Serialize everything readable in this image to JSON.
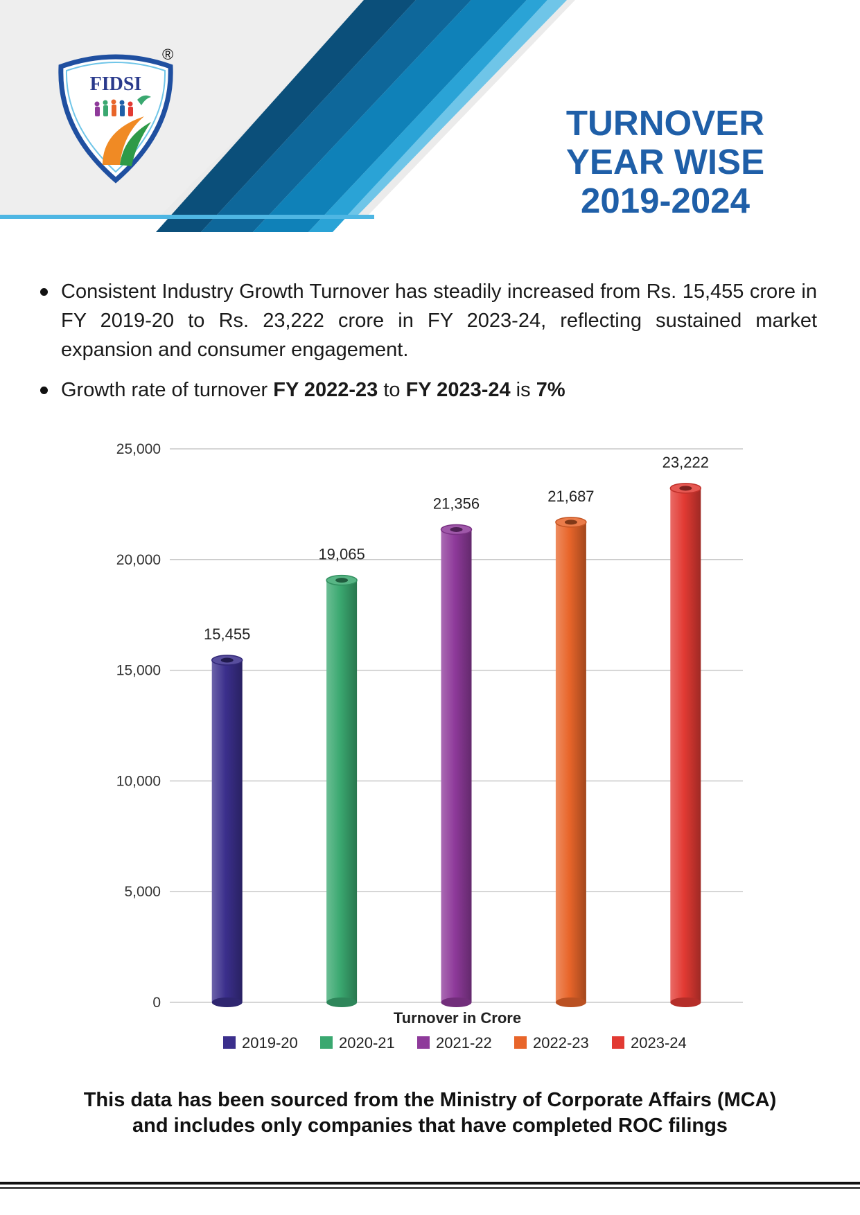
{
  "header": {
    "logo_text": "FIDSI",
    "registered_mark": "®",
    "title_lines": [
      "TURNOVER",
      "YEAR WISE",
      "2019-2024"
    ],
    "accent_color": "#1f5fa8"
  },
  "bullets": {
    "b1": "Consistent Industry Growth Turnover has steadily increased from Rs. 15,455 crore in FY 2019-20 to Rs. 23,222 crore in FY 2023-24, reflecting sustained market expansion and consumer engagement.",
    "b2_pre": "Growth rate of turnover ",
    "b2_from": "FY 2022-23",
    "b2_mid": " to ",
    "b2_to": "FY 2023-24",
    "b2_is": " is ",
    "b2_rate": "7%"
  },
  "chart_data": {
    "type": "bar",
    "title": "",
    "xlabel": "Turnover in Crore",
    "ylabel": "",
    "ylim": [
      0,
      25000
    ],
    "yticks": [
      0,
      5000,
      10000,
      15000,
      20000,
      25000
    ],
    "ytick_labels": [
      "0",
      "5,000",
      "10,000",
      "15,000",
      "20,000",
      "25,000"
    ],
    "grid": true,
    "legend_position": "bottom",
    "categories": [
      "2019-20",
      "2020-21",
      "2021-22",
      "2022-23",
      "2023-24"
    ],
    "values": [
      15455,
      19065,
      21356,
      21687,
      23222
    ],
    "value_labels": [
      "15,455",
      "19,065",
      "21,356",
      "21,687",
      "23,222"
    ],
    "colors": [
      "#3b2f8c",
      "#3aa870",
      "#8e3a9a",
      "#e8652a",
      "#e23a33"
    ]
  },
  "footer": {
    "line1": "This data has been sourced from the Ministry of Corporate Affairs (MCA)",
    "line2": "and includes only companies that have completed ROC filings"
  }
}
